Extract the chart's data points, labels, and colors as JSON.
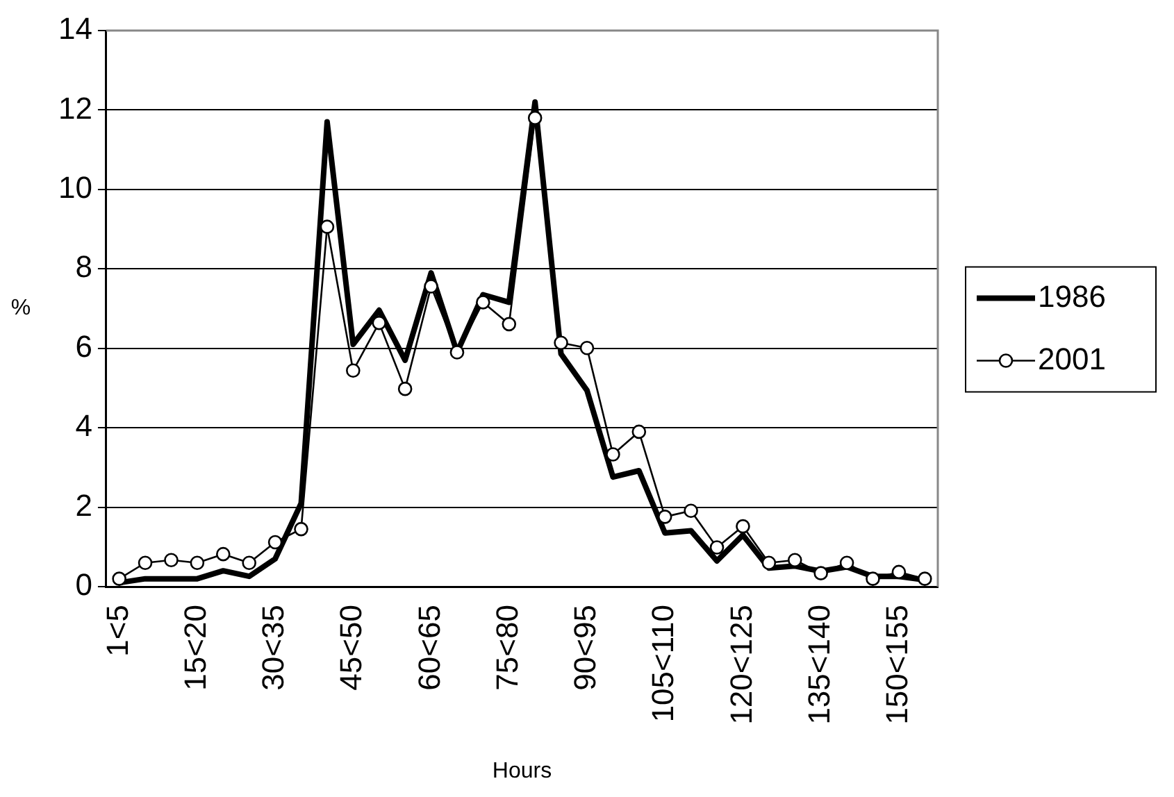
{
  "chart_data": {
    "type": "line",
    "xlabel": "Hours",
    "ylabel": "%",
    "categories": [
      "1<5",
      null,
      null,
      "15<20",
      null,
      null,
      "30<35",
      null,
      null,
      "45<50",
      null,
      null,
      "60<65",
      null,
      null,
      "75<80",
      null,
      null,
      "90<95",
      null,
      null,
      "105<110",
      null,
      null,
      "120<125",
      null,
      null,
      "135<140",
      null,
      null,
      "150<155",
      null
    ],
    "series": [
      {
        "name": "1986",
        "color": "#000000",
        "marker": "none",
        "values": [
          0.1,
          0.2,
          0.2,
          0.2,
          0.4,
          0.26,
          0.7,
          2.1,
          11.7,
          6.1,
          6.96,
          5.7,
          7.9,
          5.9,
          7.35,
          7.16,
          12.2,
          5.86,
          4.94,
          2.76,
          2.92,
          1.35,
          1.41,
          0.65,
          1.3,
          0.47,
          0.52,
          0.39,
          0.5,
          0.26,
          0.26,
          0.17
        ]
      },
      {
        "name": "2001",
        "color": "#000000",
        "marker": "circle",
        "values": [
          0.2,
          0.6,
          0.67,
          0.6,
          0.82,
          0.6,
          1.12,
          1.45,
          9.06,
          5.44,
          6.64,
          4.98,
          7.56,
          5.9,
          7.16,
          6.61,
          11.8,
          6.14,
          6.01,
          3.33,
          3.9,
          1.76,
          1.91,
          0.99,
          1.52,
          0.6,
          0.67,
          0.34,
          0.6,
          0.2,
          0.37,
          0.2
        ]
      }
    ],
    "ylim": [
      0,
      14
    ],
    "yticks": [
      0,
      2,
      4,
      6,
      8,
      10,
      12,
      14
    ],
    "grid": "y",
    "legend": "right",
    "line_style": "solid"
  }
}
